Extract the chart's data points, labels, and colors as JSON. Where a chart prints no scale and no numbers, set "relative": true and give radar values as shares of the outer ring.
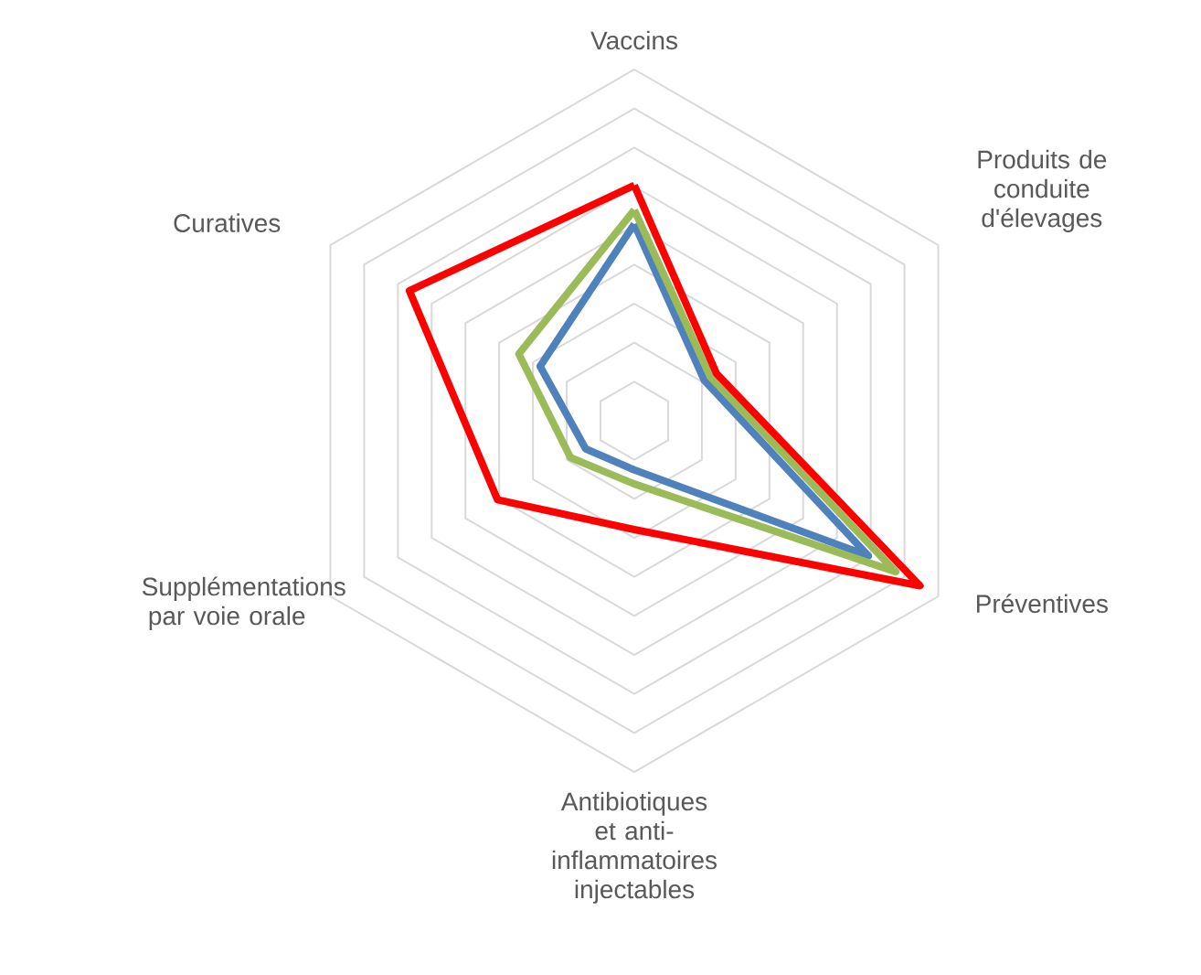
{
  "chart_data": {
    "type": "radar",
    "relative": true,
    "categories": [
      "Vaccins",
      "Produits de conduite d'élevages",
      "Préventives",
      "Antibiotiques et anti-inflammatoires injectables",
      "Supplémentations par voie orale",
      "Curatives"
    ],
    "series": [
      {
        "color": "#4f81bd",
        "values": [
          0.56,
          0.23,
          0.77,
          0.14,
          0.16,
          0.31
        ]
      },
      {
        "color": "#9bbb59",
        "values": [
          0.6,
          0.25,
          0.86,
          0.18,
          0.21,
          0.38
        ]
      },
      {
        "color": "#ff0000",
        "values": [
          0.67,
          0.27,
          0.94,
          0.31,
          0.45,
          0.74
        ]
      }
    ]
  }
}
